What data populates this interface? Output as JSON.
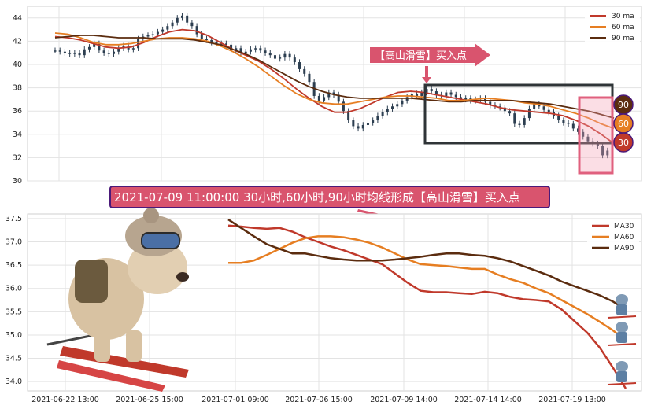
{
  "colors": {
    "ma30": "#c0392b",
    "ma60": "#e67e22",
    "ma90": "#5b2c0f",
    "candle_up": "#2c3e50",
    "banner_bg": "#d9546e",
    "banner_border": "#4b1a7a",
    "box": "#2f3437",
    "highlight": "#f4a0b4"
  },
  "annotations": {
    "banner_text": "2021-07-09 11:00:00 30小时,60小时,90小时均线形成【高山滑雪】买入点",
    "arrow_label": "【高山滑雪】买入点",
    "badges": [
      "90",
      "60",
      "30"
    ]
  },
  "chart_data": [
    {
      "type": "candlestick",
      "title": "",
      "ylim": [
        30,
        45
      ],
      "yticks": [
        30,
        32,
        34,
        36,
        38,
        40,
        42,
        44
      ],
      "grid": true,
      "legend_position": "top-right",
      "legend": [
        "30 ma",
        "60 ma",
        "90 ma"
      ],
      "close": [
        41.2,
        41.1,
        41.0,
        40.9,
        41.0,
        40.8,
        41.3,
        41.5,
        41.8,
        41.2,
        41.0,
        40.9,
        41.1,
        41.4,
        41.6,
        41.3,
        41.4,
        42.2,
        42.4,
        42.5,
        42.6,
        42.8,
        43.0,
        43.3,
        43.6,
        44.0,
        44.2,
        43.6,
        43.3,
        42.6,
        42.2,
        42.1,
        41.9,
        41.8,
        41.8,
        41.7,
        41.2,
        41.4,
        41.0,
        41.1,
        41.3,
        41.4,
        41.2,
        41.0,
        40.8,
        40.5,
        40.6,
        40.9,
        40.6,
        40.2,
        39.6,
        39.2,
        38.5,
        37.3,
        36.9,
        37.2,
        37.6,
        37.4,
        36.8,
        36.0,
        35.2,
        34.7,
        34.5,
        34.8,
        35.0,
        35.2,
        35.6,
        35.9,
        36.2,
        36.4,
        36.6,
        36.9,
        37.2,
        37.5,
        37.3,
        37.6,
        37.9,
        37.7,
        37.4,
        37.3,
        37.6,
        37.4,
        37.2,
        37.0,
        37.1,
        36.9,
        37.0,
        37.1,
        36.8,
        36.5,
        36.4,
        36.3,
        36.0,
        35.8,
        34.9,
        34.8,
        35.4,
        36.2,
        36.6,
        36.4,
        36.1,
        35.9,
        35.6,
        35.2,
        35.0,
        34.9,
        34.5,
        34.2,
        33.8,
        33.4,
        33.2,
        33.0,
        32.2,
        32.6,
        32.9
      ],
      "series": [
        {
          "name": "30 ma",
          "values": [
            42.4,
            42.3,
            42.1,
            41.8,
            41.5,
            41.4,
            41.5,
            41.9,
            42.4,
            42.8,
            43.0,
            42.9,
            42.5,
            41.9,
            41.3,
            40.8,
            40.3,
            39.6,
            38.8,
            37.9,
            37.1,
            36.4,
            35.9,
            35.9,
            36.2,
            36.7,
            37.2,
            37.6,
            37.7,
            37.6,
            37.4,
            37.2,
            37.0,
            36.8,
            36.6,
            36.3,
            36.1,
            36.0,
            35.9,
            35.8,
            35.6,
            35.2,
            34.7,
            34.0,
            33.2
          ]
        },
        {
          "name": "60 ma",
          "values": [
            42.7,
            42.6,
            42.3,
            41.9,
            41.7,
            41.7,
            41.8,
            42.0,
            42.2,
            42.3,
            42.3,
            42.2,
            42.0,
            41.6,
            41.1,
            40.5,
            39.8,
            39.0,
            38.2,
            37.5,
            37.0,
            36.7,
            36.6,
            36.6,
            36.8,
            37.0,
            37.2,
            37.3,
            37.3,
            37.2,
            37.1,
            36.9,
            36.9,
            37.0,
            37.1,
            37.0,
            36.9,
            36.7,
            36.6,
            36.4,
            36.1,
            35.8,
            35.4,
            34.9,
            34.5
          ]
        },
        {
          "name": "90 ma",
          "values": [
            42.3,
            42.4,
            42.5,
            42.5,
            42.4,
            42.3,
            42.3,
            42.3,
            42.2,
            42.2,
            42.2,
            42.1,
            41.9,
            41.7,
            41.3,
            40.9,
            40.4,
            39.8,
            39.2,
            38.6,
            38.1,
            37.7,
            37.4,
            37.2,
            37.1,
            37.1,
            37.1,
            37.1,
            37.1,
            37.0,
            36.9,
            36.8,
            36.8,
            36.9,
            36.9,
            36.9,
            36.9,
            36.8,
            36.7,
            36.6,
            36.4,
            36.2,
            36.0,
            35.7,
            35.4
          ]
        }
      ]
    },
    {
      "type": "line",
      "title": "",
      "ylim": [
        33.8,
        37.6
      ],
      "yticks": [
        34.0,
        34.5,
        35.0,
        35.5,
        36.0,
        36.5,
        37.0,
        37.5
      ],
      "xticks": [
        "2021-06-22 13:00",
        "2021-06-25 15:00",
        "2021-07-01 09:00",
        "2021-07-06 15:00",
        "2021-07-09 14:00",
        "2021-07-14 14:00",
        "2021-07-19 13:00"
      ],
      "grid": true,
      "legend_position": "top-right",
      "legend": [
        "MA30",
        "MA60",
        "MA90"
      ],
      "series": [
        {
          "name": "MA30",
          "values": [
            37.35,
            37.33,
            37.3,
            37.28,
            37.3,
            37.22,
            37.1,
            37.0,
            36.9,
            36.82,
            36.72,
            36.62,
            36.52,
            36.32,
            36.12,
            35.95,
            35.92,
            35.92,
            35.9,
            35.88,
            35.93,
            35.9,
            35.82,
            35.77,
            35.75,
            35.72,
            35.55,
            35.3,
            35.05,
            34.72,
            34.3,
            33.85
          ]
        },
        {
          "name": "MA60",
          "values": [
            36.55,
            36.55,
            36.6,
            36.72,
            36.85,
            36.98,
            37.08,
            37.12,
            37.12,
            37.1,
            37.05,
            36.98,
            36.88,
            36.75,
            36.62,
            36.52,
            36.5,
            36.48,
            36.45,
            36.42,
            36.42,
            36.3,
            36.2,
            36.12,
            36.0,
            35.9,
            35.75,
            35.6,
            35.45,
            35.28,
            35.1,
            34.88
          ]
        },
        {
          "name": "MA90",
          "values": [
            37.48,
            37.3,
            37.12,
            36.95,
            36.85,
            36.75,
            36.75,
            36.7,
            36.65,
            36.62,
            36.6,
            36.6,
            36.6,
            36.62,
            36.65,
            36.68,
            36.72,
            36.75,
            36.75,
            36.72,
            36.7,
            36.65,
            36.58,
            36.48,
            36.38,
            36.28,
            36.15,
            36.05,
            35.95,
            35.85,
            35.72,
            35.55
          ]
        }
      ]
    }
  ]
}
